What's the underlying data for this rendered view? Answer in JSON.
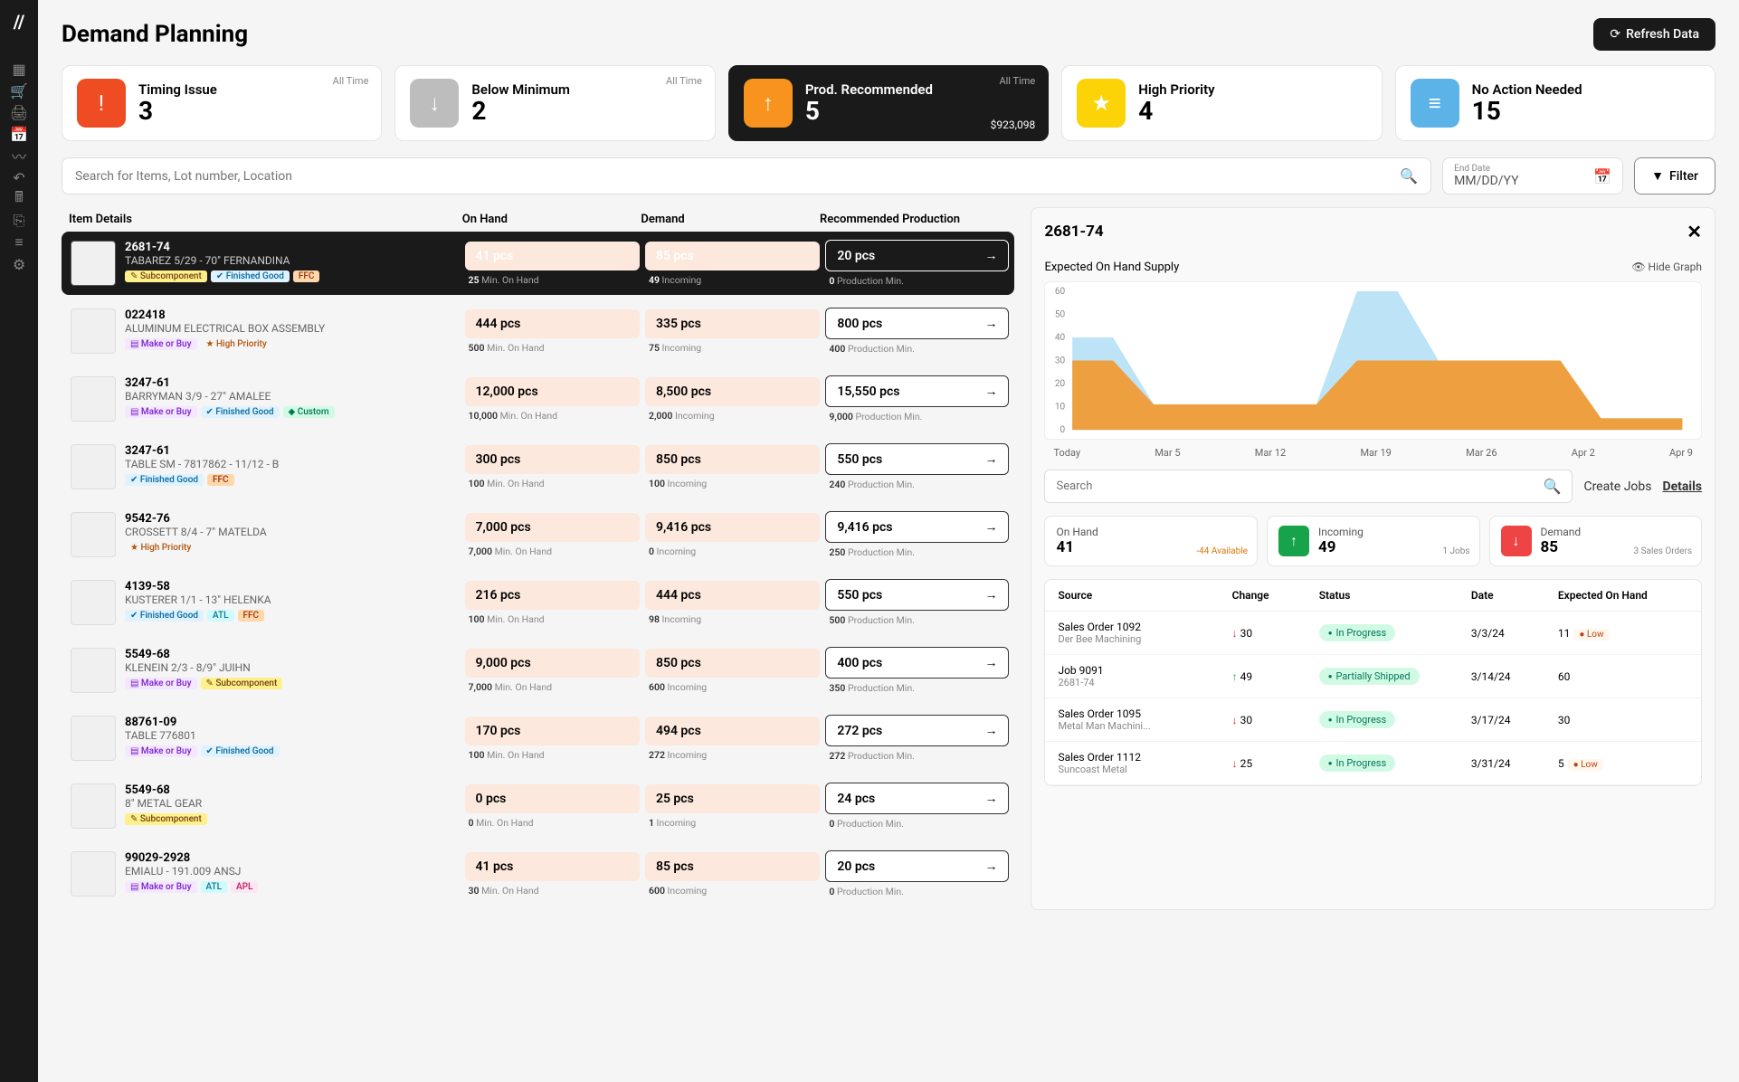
{
  "page": {
    "title": "Demand Planning",
    "refresh": "Refresh Data"
  },
  "nav_icons": [
    "▦",
    "🛒",
    "🖨",
    "📅",
    "〰",
    "↶",
    "🖩",
    "⎘",
    "≡",
    "⚙"
  ],
  "summary": [
    {
      "id": "timing",
      "title": "Timing Issue",
      "value": "3",
      "meta": "All Time",
      "icon": "!",
      "color": "#ef4c23",
      "sub": ""
    },
    {
      "id": "below",
      "title": "Below Minimum",
      "value": "2",
      "meta": "All Time",
      "icon": "↓",
      "color": "#bdbdbd",
      "sub": ""
    },
    {
      "id": "prod",
      "title": "Prod. Recommended",
      "value": "5",
      "meta": "All Time",
      "icon": "↑",
      "color": "#f7931e",
      "sub": "$923,098",
      "active": true
    },
    {
      "id": "high",
      "title": "High Priority",
      "value": "4",
      "meta": "",
      "icon": "★",
      "color": "#fcd307",
      "sub": ""
    },
    {
      "id": "none",
      "title": "No Action Needed",
      "value": "15",
      "meta": "",
      "icon": "≡",
      "color": "#5cb3e8",
      "sub": ""
    }
  ],
  "search": {
    "placeholder": "Search for Items, Lot number, Location"
  },
  "date": {
    "label": "End Date",
    "placeholder": "MM/DD/YY"
  },
  "filter_label": "Filter",
  "table": {
    "headers": {
      "item": "Item Details",
      "onhand": "On Hand",
      "demand": "Demand",
      "rec": "Recommended Production"
    },
    "rows": [
      {
        "id": "2681-74",
        "name": "TABAREZ 5/29 - 70\" FERNANDINA",
        "tags": [
          [
            "Subcomponent",
            "sub"
          ],
          [
            "Finished Good",
            "fin"
          ],
          [
            "FFC",
            "ffc"
          ]
        ],
        "oh": "41 pcs",
        "ohs": "25",
        "ohsl": "Min. On Hand",
        "d": "85 pcs",
        "ds": "49",
        "dsl": "Incoming",
        "r": "20 pcs",
        "rs": "0",
        "rsl": "Production Min.",
        "selected": true
      },
      {
        "id": "022418",
        "name": "ALUMINUM ELECTRICAL BOX ASSEMBLY",
        "tags": [
          [
            "Make or Buy",
            "make"
          ],
          [
            "★ High Priority",
            "hp"
          ]
        ],
        "oh": "444 pcs",
        "ohs": "500",
        "ohsl": "Min. On Hand",
        "d": "335 pcs",
        "ds": "75",
        "dsl": "Incoming",
        "r": "800 pcs",
        "rs": "400",
        "rsl": "Production Min."
      },
      {
        "id": "3247-61",
        "name": "BARRYMAN 3/9 - 27\" AMALEE",
        "tags": [
          [
            "Make or Buy",
            "make"
          ],
          [
            "Finished Good",
            "fin"
          ],
          [
            "Custom",
            "custom"
          ]
        ],
        "oh": "12,000 pcs",
        "ohs": "10,000",
        "ohsl": "Min. On Hand",
        "d": "8,500 pcs",
        "ds": "2,000",
        "dsl": "Incoming",
        "r": "15,550 pcs",
        "rs": "9,000",
        "rsl": "Production Min."
      },
      {
        "id": "3247-61",
        "name": "TABLE SM - 7817862 - 11/12 - B",
        "tags": [
          [
            "Finished Good",
            "fin"
          ],
          [
            "FFC",
            "ffc"
          ]
        ],
        "oh": "300 pcs",
        "ohs": "100",
        "ohsl": "Min. On Hand",
        "d": "850 pcs",
        "ds": "100",
        "dsl": "Incoming",
        "r": "550 pcs",
        "rs": "240",
        "rsl": "Production Min."
      },
      {
        "id": "9542-76",
        "name": "CROSSETT 8/4 - 7\" MATELDA",
        "tags": [
          [
            "★ High Priority",
            "hp"
          ]
        ],
        "oh": "7,000 pcs",
        "ohs": "7,000",
        "ohsl": "Min. On Hand",
        "d": "9,416 pcs",
        "ds": "0",
        "dsl": "Incoming",
        "r": "9,416 pcs",
        "rs": "250",
        "rsl": "Production Min."
      },
      {
        "id": "4139-58",
        "name": "KUSTERER 1/1 - 13\" HELENKA",
        "tags": [
          [
            "Finished Good",
            "fin"
          ],
          [
            "ATL",
            "atl"
          ],
          [
            "FFC",
            "ffc"
          ]
        ],
        "oh": "216 pcs",
        "ohs": "100",
        "ohsl": "Min. On Hand",
        "d": "444 pcs",
        "ds": "98",
        "dsl": "Incoming",
        "r": "550 pcs",
        "rs": "500",
        "rsl": "Production Min."
      },
      {
        "id": "5549-68",
        "name": "KLENEIN 2/3 - 8/9\" JUIHN",
        "tags": [
          [
            "Make or Buy",
            "make"
          ],
          [
            "Subcomponent",
            "sub"
          ]
        ],
        "oh": "9,000 pcs",
        "ohs": "7,000",
        "ohsl": "Min. On Hand",
        "d": "850 pcs",
        "ds": "600",
        "dsl": "Incoming",
        "r": "400 pcs",
        "rs": "350",
        "rsl": "Production Min."
      },
      {
        "id": "88761-09",
        "name": "TABLE 776801",
        "tags": [
          [
            "Make or Buy",
            "make"
          ],
          [
            "Finished Good",
            "fin"
          ]
        ],
        "oh": "170 pcs",
        "ohs": "100",
        "ohsl": "Min. On Hand",
        "d": "494 pcs",
        "ds": "272",
        "dsl": "Incoming",
        "r": "272 pcs",
        "rs": "272",
        "rsl": "Production Min."
      },
      {
        "id": "5549-68",
        "name": "8\" METAL GEAR",
        "tags": [
          [
            "Subcomponent",
            "sub"
          ]
        ],
        "oh": "0 pcs",
        "ohs": "0",
        "ohsl": "Min. On Hand",
        "d": "25 pcs",
        "ds": "1",
        "dsl": "Incoming",
        "r": "24 pcs",
        "rs": "0",
        "rsl": "Production Min."
      },
      {
        "id": "99029-2928",
        "name": "EMIALU - 191.009 ANSJ",
        "tags": [
          [
            "Make or Buy",
            "make"
          ],
          [
            "ATL",
            "atl"
          ],
          [
            "APL",
            "apl"
          ]
        ],
        "oh": "41 pcs",
        "ohs": "30",
        "ohsl": "Min. On Hand",
        "d": "85 pcs",
        "ds": "600",
        "dsl": "Incoming",
        "r": "20 pcs",
        "rs": "0",
        "rsl": "Production Min."
      }
    ]
  },
  "detail": {
    "title": "2681-74",
    "graph_title": "Expected On Hand Supply",
    "hide": "Hide Graph",
    "chart": {
      "type": "area",
      "y_ticks": [
        0,
        10,
        20,
        30,
        40,
        50,
        60
      ],
      "x_labels": [
        "Today",
        "Mar 5",
        "Mar 12",
        "Mar 19",
        "Mar 26",
        "Apr 2",
        "Apr 9"
      ],
      "series1_color": "#f7931e",
      "series2_color": "#7cc7f0",
      "series1": [
        30,
        30,
        11,
        11,
        11,
        11,
        11,
        30,
        30,
        30,
        30,
        30,
        30,
        5,
        5,
        5
      ],
      "series2": [
        40,
        40,
        11,
        11,
        11,
        11,
        11,
        60,
        60,
        30,
        30,
        30,
        30,
        5,
        5,
        5
      ]
    },
    "search_ph": "Search",
    "create": "Create Jobs",
    "details": "Details",
    "stats": [
      {
        "label": "On Hand",
        "value": "41",
        "avail": "-44 Available",
        "icon": "",
        "color": ""
      },
      {
        "label": "Incoming",
        "value": "49",
        "meta": "1 Jobs",
        "icon": "↑",
        "color": "#16a34a"
      },
      {
        "label": "Demand",
        "value": "85",
        "meta": "3 Sales Orders",
        "icon": "↓",
        "color": "#ef4444"
      }
    ],
    "tx_headers": {
      "source": "Source",
      "change": "Change",
      "status": "Status",
      "date": "Date",
      "eoh": "Expected On Hand"
    },
    "tx": [
      {
        "s": "Sales Order 1092",
        "ss": "Der Bee Machining",
        "c": "30",
        "cd": "down",
        "st": "In Progress",
        "d": "3/3/24",
        "e": "11",
        "low": "Low"
      },
      {
        "s": "Job 9091",
        "ss": "2681-74",
        "c": "49",
        "cd": "up",
        "st": "Partially Shipped",
        "d": "3/14/24",
        "e": "60",
        "low": ""
      },
      {
        "s": "Sales Order 1095",
        "ss": "Metal Man Machini...",
        "c": "30",
        "cd": "down",
        "st": "In Progress",
        "d": "3/17/24",
        "e": "30",
        "low": ""
      },
      {
        "s": "Sales Order 1112",
        "ss": "Suncoast Metal",
        "c": "25",
        "cd": "down",
        "st": "In Progress",
        "d": "3/31/24",
        "e": "5",
        "low": "Low"
      }
    ]
  }
}
